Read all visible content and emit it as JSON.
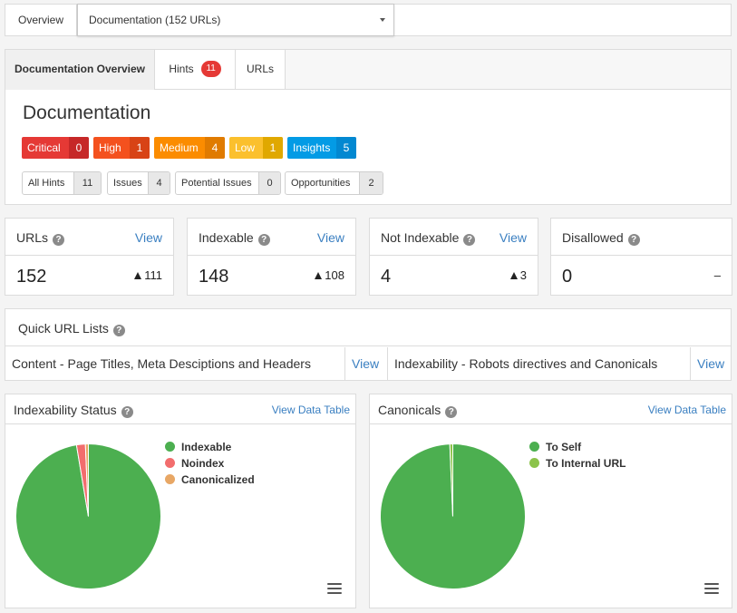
{
  "topbar": {
    "overview_label": "Overview",
    "selected_audit": "Documentation (152 URLs)"
  },
  "tabs": [
    {
      "label": "Documentation Overview"
    },
    {
      "label": "Hints",
      "badge": "11"
    },
    {
      "label": "URLs"
    }
  ],
  "overview": {
    "title": "Documentation",
    "severities": [
      {
        "label": "Critical",
        "count": "0",
        "color": "#e53935",
        "count_color": "#c62828"
      },
      {
        "label": "High",
        "count": "1",
        "color": "#f4511e",
        "count_color": "#d84315"
      },
      {
        "label": "Medium",
        "count": "4",
        "color": "#fb8c00",
        "count_color": "#e07b00"
      },
      {
        "label": "Low",
        "count": "1",
        "color": "#fbc02d",
        "count_color": "#e0a800"
      },
      {
        "label": "Insights",
        "count": "5",
        "color": "#039be5",
        "count_color": "#0288d1"
      }
    ],
    "hint_filters": [
      {
        "label": "All Hints",
        "count": "11"
      },
      {
        "label": "Issues",
        "count": "4"
      },
      {
        "label": "Potential Issues",
        "count": "0"
      },
      {
        "label": "Opportunities",
        "count": "2"
      }
    ]
  },
  "stats": [
    {
      "title": "URLs",
      "view": "View",
      "value": "152",
      "delta": "111"
    },
    {
      "title": "Indexable",
      "view": "View",
      "value": "148",
      "delta": "108"
    },
    {
      "title": "Not Indexable",
      "view": "View",
      "value": "4",
      "delta": "3"
    },
    {
      "title": "Disallowed",
      "value": "0",
      "delta": "–"
    }
  ],
  "quick_lists": {
    "title": "Quick URL Lists",
    "items": [
      {
        "label": "Content - Page Titles, Meta Desciptions and Headers",
        "view": "View"
      },
      {
        "label": "Indexability - Robots directives and Canonicals",
        "view": "View"
      }
    ]
  },
  "charts_panels": [
    {
      "title": "Indexability Status",
      "link": "View Data Table"
    },
    {
      "title": "Canonicals",
      "link": "View Data Table"
    }
  ],
  "chart_data": [
    {
      "type": "pie",
      "categories": [
        "Indexable",
        "Noindex",
        "Canonicalized"
      ],
      "values": [
        148,
        3,
        1
      ],
      "colors": [
        "#4caf50",
        "#f26d6d",
        "#e8a765"
      ],
      "legend": "right"
    },
    {
      "type": "pie",
      "categories": [
        "To Self",
        "To Internal URL"
      ],
      "values": [
        151,
        1
      ],
      "colors": [
        "#4caf50",
        "#8bc34a"
      ],
      "legend": "right"
    }
  ],
  "icons": {
    "help": "question-circle-icon",
    "menu": "hamburger-menu-icon",
    "dropdown": "caret-down-icon",
    "delta": "triangle-up-icon"
  }
}
